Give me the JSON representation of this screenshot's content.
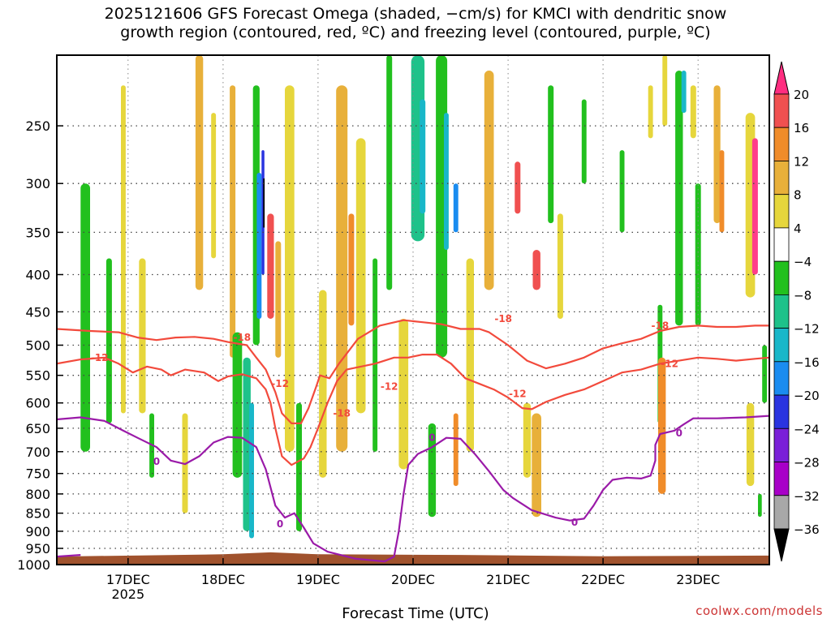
{
  "chart_data": {
    "type": "heatmap",
    "title_line1": "2025121606 GFS Forecast Omega (shaded, −cm/s) for KMCI with dendritic snow",
    "title_line2": "growth region (contoured, red, ºC) and freezing level (contoured, purple, ºC)",
    "xlabel": "Forecast Time (UTC)",
    "credit": "coolwx.com/models",
    "x_ticks": [
      {
        "label": "17DEC",
        "sub": "2025",
        "day": 1
      },
      {
        "label": "18DEC",
        "sub": "",
        "day": 2
      },
      {
        "label": "19DEC",
        "sub": "",
        "day": 3
      },
      {
        "label": "20DEC",
        "sub": "",
        "day": 4
      },
      {
        "label": "21DEC",
        "sub": "",
        "day": 5
      },
      {
        "label": "22DEC",
        "sub": "",
        "day": 6
      },
      {
        "label": "23DEC",
        "sub": "",
        "day": 7
      }
    ],
    "x_range_days": [
      0.25,
      7.75
    ],
    "y_ticks": [
      250,
      300,
      350,
      400,
      450,
      500,
      550,
      600,
      650,
      700,
      750,
      800,
      850,
      900,
      950,
      1000
    ],
    "y_range_hpa": [
      200,
      1000
    ],
    "y_scale": "log-pressure",
    "grid": true,
    "colorbar": {
      "levels": [
        {
          "label": "20",
          "color": "#ff3d8a"
        },
        {
          "label": "16",
          "color": "#f05050"
        },
        {
          "label": "12",
          "color": "#f08c2a"
        },
        {
          "label": "8",
          "color": "#e8b03a"
        },
        {
          "label": "4",
          "color": "#e6d63c"
        },
        {
          "label": "−4",
          "color": "#ffffff"
        },
        {
          "label": "−8",
          "color": "#22c01e"
        },
        {
          "label": "−12",
          "color": "#1ec28a"
        },
        {
          "label": "−16",
          "color": "#19b7c9"
        },
        {
          "label": "−20",
          "color": "#1a8cf0"
        },
        {
          "label": "−24",
          "color": "#2a34e0"
        },
        {
          "label": "−28",
          "color": "#7a20d8"
        },
        {
          "label": "−32",
          "color": "#a800c8"
        },
        {
          "label": "−36",
          "color": "#a8a8a8"
        }
      ],
      "top_color": "#ff2d80",
      "bottom_color": "#000000"
    },
    "terrain_color": "#a0522d",
    "contours": [
      {
        "name": "-18",
        "color": "#f24a3c",
        "points": [
          [
            0.25,
            475
          ],
          [
            0.6,
            478
          ],
          [
            0.9,
            480
          ],
          [
            1.1,
            488
          ],
          [
            1.3,
            492
          ],
          [
            1.5,
            488
          ],
          [
            1.7,
            487
          ],
          [
            1.9,
            490
          ],
          [
            2.05,
            495
          ],
          [
            2.25,
            500
          ],
          [
            2.35,
            520
          ],
          [
            2.45,
            540
          ],
          [
            2.55,
            580
          ],
          [
            2.62,
            620
          ],
          [
            2.72,
            640
          ],
          [
            2.82,
            640
          ],
          [
            2.9,
            610
          ],
          [
            2.98,
            570
          ],
          [
            3.02,
            550
          ],
          [
            3.12,
            555
          ],
          [
            3.22,
            530
          ],
          [
            3.42,
            490
          ],
          [
            3.65,
            470
          ],
          [
            3.9,
            462
          ],
          [
            4.1,
            465
          ],
          [
            4.3,
            468
          ],
          [
            4.5,
            475
          ],
          [
            4.7,
            475
          ],
          [
            4.8,
            480
          ],
          [
            5.0,
            500
          ],
          [
            5.2,
            525
          ],
          [
            5.4,
            538
          ],
          [
            5.6,
            530
          ],
          [
            5.8,
            520
          ],
          [
            6.0,
            505
          ],
          [
            6.2,
            497
          ],
          [
            6.4,
            490
          ],
          [
            6.6,
            478
          ],
          [
            6.8,
            472
          ],
          [
            7.0,
            470
          ],
          [
            7.2,
            472
          ],
          [
            7.4,
            472
          ],
          [
            7.6,
            470
          ],
          [
            7.75,
            470
          ]
        ],
        "labels": [
          [
            2.2,
            488,
            "-18"
          ],
          [
            3.25,
            620,
            "-18"
          ],
          [
            4.95,
            460,
            "-18"
          ],
          [
            6.6,
            470,
            "-18"
          ]
        ]
      },
      {
        "name": "-12",
        "color": "#f24a3c",
        "points": [
          [
            0.25,
            530
          ],
          [
            0.5,
            523
          ],
          [
            0.75,
            520
          ],
          [
            0.9,
            530
          ],
          [
            1.05,
            545
          ],
          [
            1.2,
            535
          ],
          [
            1.35,
            540
          ],
          [
            1.45,
            550
          ],
          [
            1.6,
            540
          ],
          [
            1.8,
            545
          ],
          [
            1.95,
            560
          ],
          [
            2.05,
            552
          ],
          [
            2.2,
            548
          ],
          [
            2.35,
            555
          ],
          [
            2.45,
            575
          ],
          [
            2.5,
            600
          ],
          [
            2.55,
            650
          ],
          [
            2.62,
            710
          ],
          [
            2.72,
            730
          ],
          [
            2.85,
            715
          ],
          [
            2.92,
            690
          ],
          [
            3.0,
            650
          ],
          [
            3.1,
            600
          ],
          [
            3.2,
            560
          ],
          [
            3.3,
            540
          ],
          [
            3.45,
            535
          ],
          [
            3.6,
            530
          ],
          [
            3.8,
            520
          ],
          [
            3.95,
            520
          ],
          [
            4.1,
            515
          ],
          [
            4.25,
            515
          ],
          [
            4.4,
            530
          ],
          [
            4.55,
            555
          ],
          [
            4.7,
            565
          ],
          [
            4.85,
            575
          ],
          [
            5.0,
            590
          ],
          [
            5.15,
            610
          ],
          [
            5.25,
            612
          ],
          [
            5.4,
            598
          ],
          [
            5.6,
            585
          ],
          [
            5.8,
            575
          ],
          [
            6.0,
            560
          ],
          [
            6.2,
            545
          ],
          [
            6.4,
            540
          ],
          [
            6.6,
            530
          ],
          [
            6.8,
            525
          ],
          [
            7.0,
            520
          ],
          [
            7.2,
            522
          ],
          [
            7.4,
            525
          ],
          [
            7.6,
            522
          ],
          [
            7.75,
            520
          ]
        ],
        "labels": [
          [
            0.7,
            520,
            "-12"
          ],
          [
            2.6,
            565,
            "-12"
          ],
          [
            3.75,
            570,
            "-12"
          ],
          [
            5.1,
            583,
            "-12"
          ],
          [
            6.7,
            530,
            "-12"
          ]
        ]
      },
      {
        "name": "0",
        "color": "#9a1aa8",
        "points": [
          [
            0.25,
            632
          ],
          [
            0.5,
            628
          ],
          [
            0.75,
            635
          ],
          [
            0.95,
            655
          ],
          [
            1.1,
            670
          ],
          [
            1.3,
            690
          ],
          [
            1.45,
            720
          ],
          [
            1.6,
            728
          ],
          [
            1.75,
            710
          ],
          [
            1.9,
            680
          ],
          [
            2.05,
            668
          ],
          [
            2.2,
            670
          ],
          [
            2.35,
            690
          ],
          [
            2.45,
            740
          ],
          [
            2.55,
            830
          ],
          [
            2.65,
            862
          ],
          [
            2.75,
            850
          ],
          [
            2.85,
            890
          ],
          [
            2.95,
            935
          ],
          [
            3.1,
            960
          ],
          [
            3.4,
            982
          ],
          [
            3.7,
            990
          ],
          [
            3.8,
            975
          ],
          [
            3.85,
            900
          ],
          [
            3.9,
            800
          ],
          [
            3.95,
            730
          ],
          [
            4.05,
            705
          ],
          [
            4.2,
            690
          ],
          [
            4.35,
            670
          ],
          [
            4.5,
            672
          ],
          [
            4.65,
            705
          ],
          [
            4.8,
            745
          ],
          [
            4.95,
            790
          ],
          [
            5.05,
            810
          ],
          [
            5.25,
            842
          ],
          [
            5.5,
            862
          ],
          [
            5.65,
            870
          ],
          [
            5.8,
            865
          ],
          [
            5.9,
            830
          ],
          [
            6.0,
            790
          ],
          [
            6.1,
            765
          ],
          [
            6.25,
            760
          ],
          [
            6.4,
            762
          ],
          [
            6.5,
            755
          ],
          [
            6.55,
            720
          ],
          [
            6.55,
            685
          ],
          [
            6.6,
            662
          ],
          [
            6.75,
            655
          ],
          [
            6.85,
            642
          ],
          [
            6.95,
            630
          ],
          [
            7.2,
            630
          ],
          [
            7.5,
            628
          ],
          [
            7.75,
            625
          ]
        ],
        "labels": [
          [
            1.3,
            722,
            "0"
          ],
          [
            2.6,
            880,
            "0"
          ],
          [
            4.2,
            670,
            "0"
          ],
          [
            5.7,
            875,
            "0"
          ],
          [
            6.8,
            660,
            "0"
          ]
        ]
      },
      {
        "name": "0-small",
        "color": "#9a1aa8",
        "points": [
          [
            0.25,
            975
          ],
          [
            0.5,
            970
          ]
        ],
        "labels": []
      }
    ]
  }
}
